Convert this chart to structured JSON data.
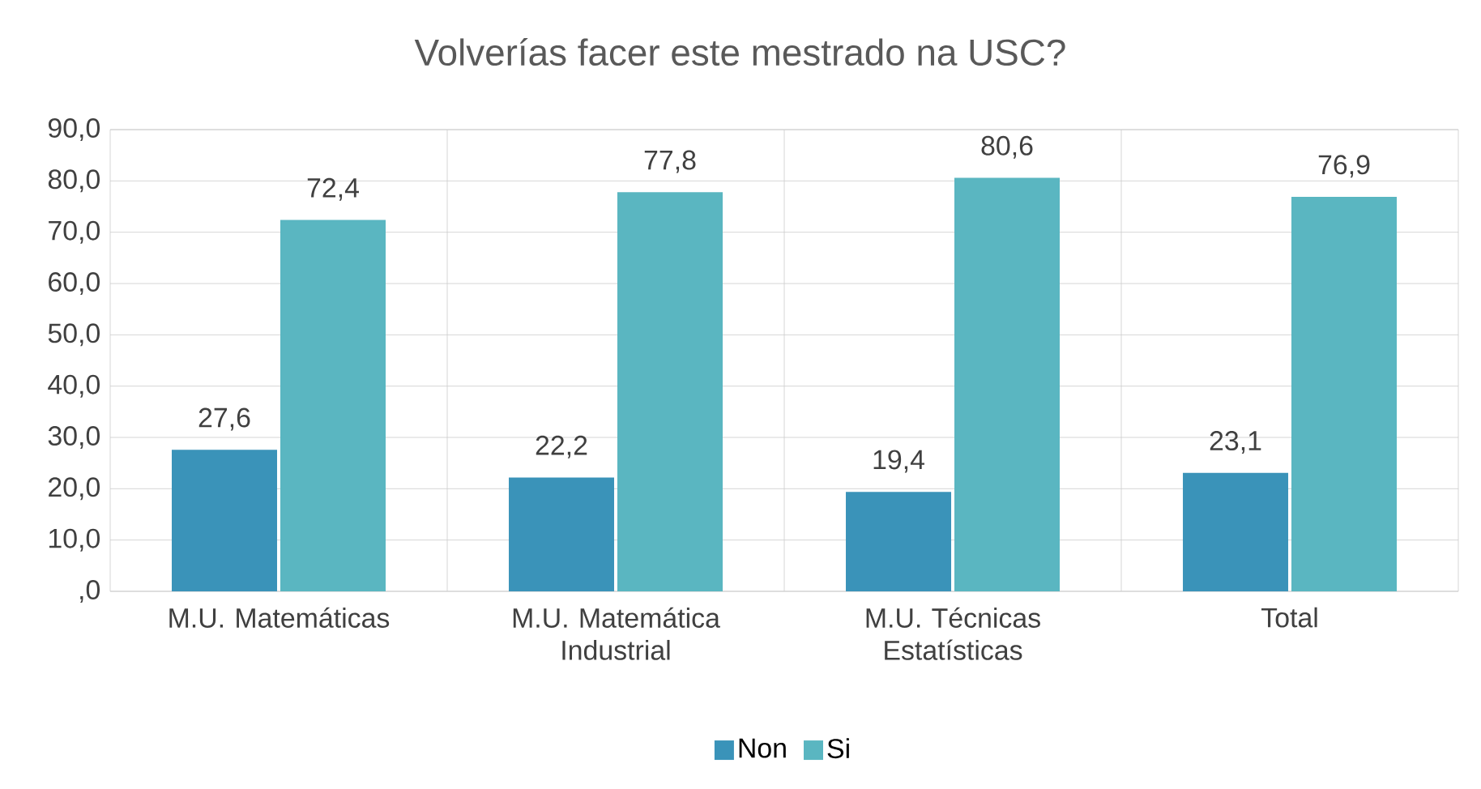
{
  "chart_data": {
    "type": "bar",
    "title": "Volverías facer este mestrado na USC?",
    "categories": [
      "M.U. Matemáticas",
      "M.U. Matemática Industrial",
      "M.U. Técnicas Estatísticas",
      "Total"
    ],
    "series": [
      {
        "name": "Non",
        "color": "#3a93b9",
        "values": [
          27.6,
          22.2,
          19.4,
          23.1
        ],
        "value_labels": [
          "27,6",
          "22,2",
          "19,4",
          "23,1"
        ]
      },
      {
        "name": "Si",
        "color": "#5ab6c1",
        "values": [
          72.4,
          77.8,
          80.6,
          76.9
        ],
        "value_labels": [
          "72,4",
          "77,8",
          "80,6",
          "76,9"
        ]
      }
    ],
    "ylim": [
      0,
      90
    ],
    "yticks": [
      {
        "value": 0,
        "label": ",0"
      },
      {
        "value": 10,
        "label": "10,0"
      },
      {
        "value": 20,
        "label": "20,0"
      },
      {
        "value": 30,
        "label": "30,0"
      },
      {
        "value": 40,
        "label": "40,0"
      },
      {
        "value": 50,
        "label": "50,0"
      },
      {
        "value": 60,
        "label": "60,0"
      },
      {
        "value": 70,
        "label": "70,0"
      },
      {
        "value": 80,
        "label": "80,0"
      },
      {
        "value": 90,
        "label": "90,0"
      }
    ],
    "grid": true,
    "legend": "bottom"
  }
}
